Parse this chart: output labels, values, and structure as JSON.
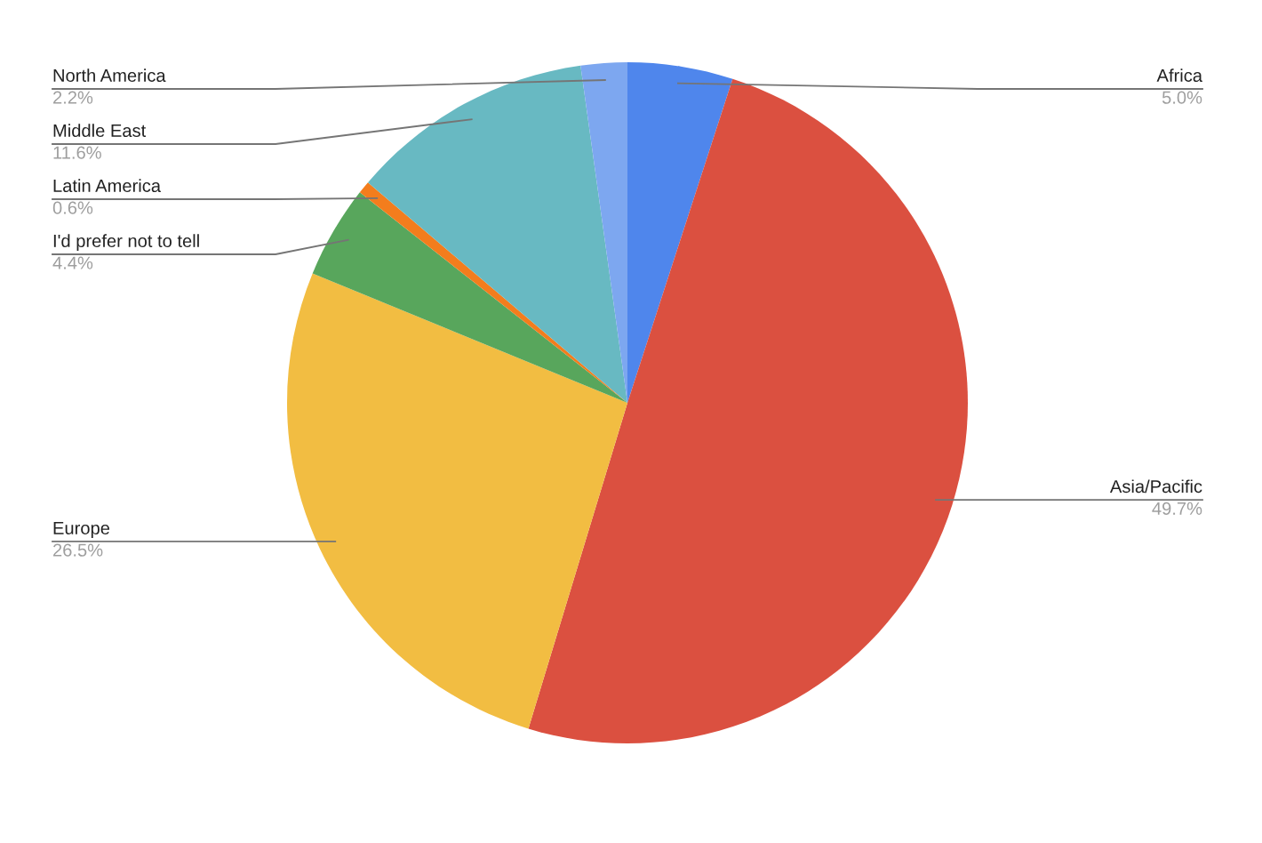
{
  "chart_data": {
    "type": "pie",
    "categories": [
      "Africa",
      "Asia/Pacific",
      "Europe",
      "I'd prefer not to tell",
      "Latin America",
      "Middle East",
      "North America"
    ],
    "values": [
      5.0,
      49.7,
      26.5,
      4.4,
      0.6,
      11.6,
      2.2
    ],
    "value_labels": [
      "5.0%",
      "49.7%",
      "26.5%",
      "4.4%",
      "0.6%",
      "11.6%",
      "2.2%"
    ],
    "colors": [
      "#4f86ec",
      "#db5040",
      "#f2bd42",
      "#58a65c",
      "#f37d1d",
      "#68b9c2",
      "#7da7f0"
    ],
    "legend": false
  }
}
